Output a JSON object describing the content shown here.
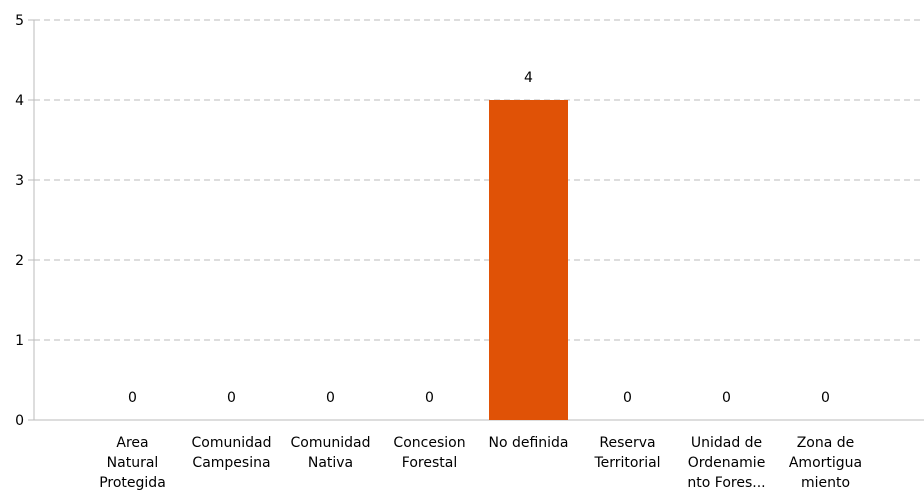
{
  "chart_data": {
    "type": "bar",
    "categories": [
      [
        "Area",
        "Natural",
        "Protegida"
      ],
      [
        "Comunidad",
        "Campesina"
      ],
      [
        "Comunidad",
        "Nativa"
      ],
      [
        "Concesion",
        "Forestal"
      ],
      [
        "No definida"
      ],
      [
        "Reserva",
        "Territorial"
      ],
      [
        "Unidad de",
        "Ordenamie",
        "nto Fores..."
      ],
      [
        "Zona de",
        "Amortigua",
        "miento"
      ]
    ],
    "values": [
      0,
      0,
      0,
      0,
      4,
      0,
      0,
      0
    ],
    "value_labels": [
      "0",
      "0",
      "0",
      "0",
      "4",
      "0",
      "0",
      "0"
    ],
    "yticks": [
      "0",
      "1",
      "2",
      "3",
      "4",
      "5"
    ],
    "ylim": [
      0,
      5
    ],
    "grid": true,
    "bar_color": "#e05206",
    "grid_color": "#dddddd",
    "axis_color": "#bbbbbb"
  }
}
